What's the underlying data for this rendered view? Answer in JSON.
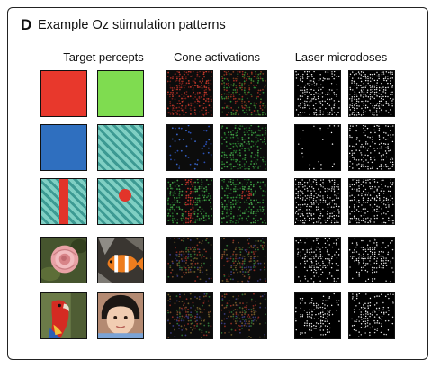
{
  "panel": {
    "letter": "D",
    "title": "Example Oz stimulation patterns"
  },
  "columns": [
    {
      "label": "Target percepts"
    },
    {
      "label": "Cone activations"
    },
    {
      "label": "Laser microdoses"
    }
  ],
  "rows": [
    {
      "targets": [
        "red",
        "green"
      ]
    },
    {
      "targets": [
        "blue",
        "teal-stripes"
      ]
    },
    {
      "targets": [
        "stripes-with-red-bar",
        "stripes-with-red-dot"
      ]
    },
    {
      "targets": [
        "rose-photo",
        "clownfish-photo"
      ]
    },
    {
      "targets": [
        "parrot-photo",
        "child-photo"
      ]
    }
  ],
  "colors": {
    "red": "#e8382c",
    "green": "#7fdc50",
    "blue": "#2f6fbf",
    "teal_light": "#7fcfc3",
    "teal_dark": "#3d9a93"
  }
}
